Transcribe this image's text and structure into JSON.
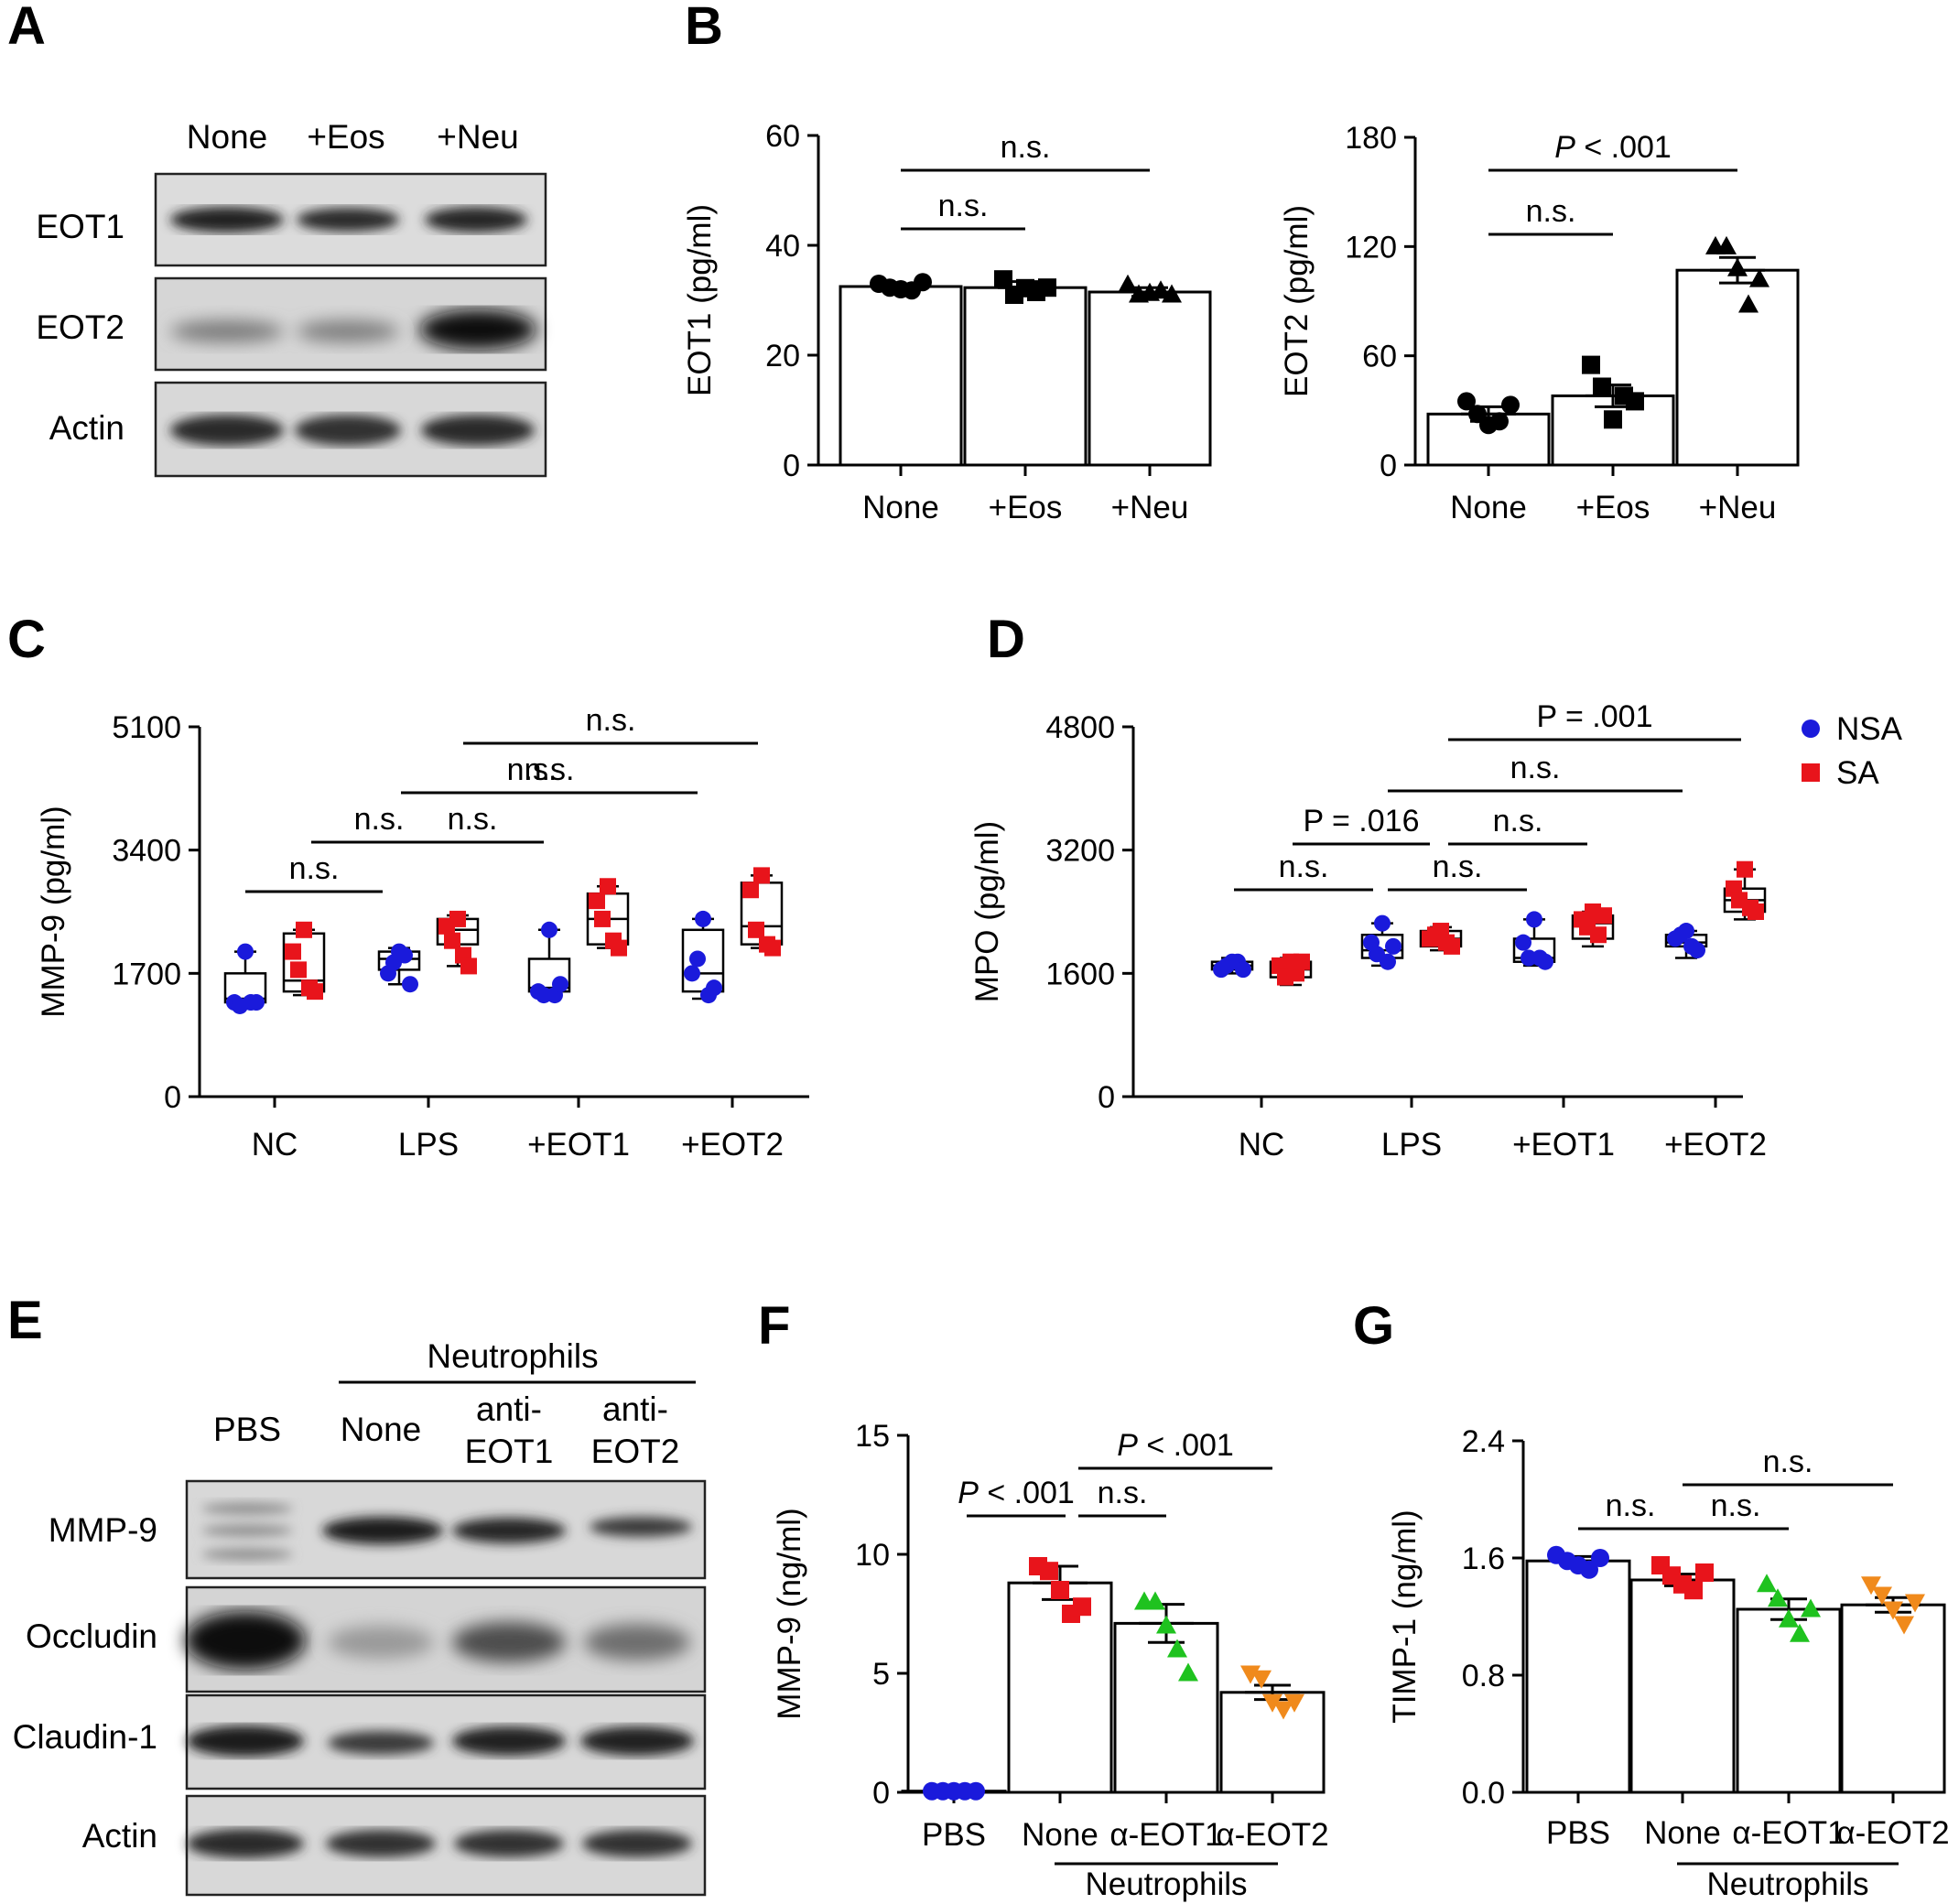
{
  "panels": {
    "A": {
      "label": "A",
      "lanes": [
        "None",
        "+Eos",
        "+Neu"
      ],
      "rows": [
        "EOT1",
        "EOT2",
        "Actin"
      ]
    },
    "E": {
      "label": "E",
      "group_label": "Neutrophils",
      "lanes": [
        "PBS",
        "None",
        "anti-",
        "EOT1",
        "anti-",
        "EOT2"
      ],
      "rows": [
        "MMP-9",
        "Occludin",
        "Claudin-1",
        "Actin"
      ]
    }
  },
  "legend": {
    "items": [
      {
        "name": "NSA",
        "color": "#1a1adb"
      },
      {
        "name": "SA",
        "color": "#e8141b"
      }
    ]
  },
  "chart_data": [
    {
      "id": "B-left",
      "panel": "B",
      "type": "bar",
      "categories": [
        "None",
        "+Eos",
        "+Neu"
      ],
      "values": [
        32.5,
        32.3,
        31.5
      ],
      "sem": [
        0.5,
        1.1,
        0.8
      ],
      "points": [
        [
          33.0,
          32.3,
          32.0,
          31.8,
          33.3
        ],
        [
          33.8,
          31.0,
          32.2,
          31.5,
          32.3
        ],
        [
          32.8,
          31.0,
          31.3,
          31.7,
          31.0
        ]
      ],
      "marker": "circle-square-triangle",
      "ylabel": "EOT1 (pg/ml)",
      "ylim": [
        0,
        60
      ],
      "yticks": [
        0,
        20,
        40,
        60
      ],
      "significance": [
        {
          "from": "None",
          "to": "+Eos",
          "text": "n.s."
        },
        {
          "from": "None",
          "to": "+Neu",
          "text": "n.s."
        }
      ]
    },
    {
      "id": "B-right",
      "panel": "B",
      "type": "bar",
      "categories": [
        "None",
        "+Eos",
        "+Neu"
      ],
      "values": [
        28,
        38,
        107
      ],
      "sem": [
        4,
        6,
        7
      ],
      "points": [
        [
          35,
          28,
          22,
          24,
          33
        ],
        [
          55,
          43,
          25,
          38,
          35
        ],
        [
          120,
          120,
          108,
          88,
          102
        ]
      ],
      "marker": "circle-square-triangle",
      "ylabel": "EOT2 (pg/ml)",
      "ylim": [
        0,
        180
      ],
      "yticks": [
        0,
        60,
        120,
        180
      ],
      "significance": [
        {
          "from": "None",
          "to": "+Eos",
          "text": "n.s."
        },
        {
          "from": "None",
          "to": "+Neu",
          "text": "P < .001"
        }
      ]
    },
    {
      "id": "C",
      "panel": "C",
      "type": "box",
      "categories": [
        "NC",
        "LPS",
        "+EOT1",
        "+EOT2"
      ],
      "series": [
        {
          "name": "NSA",
          "color": "#1a1adb",
          "marker": "circle",
          "boxes": [
            [
              1250,
              1300,
              1350,
              1700,
              2000
            ],
            [
              1550,
              1750,
              1900,
              2000,
              2050
            ],
            [
              1350,
              1450,
              1500,
              1900,
              2300
            ],
            [
              1350,
              1450,
              1700,
              2300,
              2450
            ]
          ],
          "points": [
            [
              2000,
              1300,
              1250,
              1300,
              1300
            ],
            [
              2000,
              1700,
              1850,
              1950,
              1550
            ],
            [
              2300,
              1450,
              1400,
              1400,
              1550
            ],
            [
              2450,
              1700,
              1900,
              1400,
              1500
            ]
          ]
        },
        {
          "name": "SA",
          "color": "#e8141b",
          "marker": "square",
          "boxes": [
            [
              1400,
              1450,
              1600,
              2250,
              2300
            ],
            [
              1800,
              2100,
              2300,
              2450,
              2500
            ],
            [
              2050,
              2100,
              2450,
              2800,
              2900
            ],
            [
              2050,
              2100,
              2350,
              2950,
              3050
            ]
          ],
          "points": [
            [
              2300,
              2000,
              1750,
              1500,
              1450
            ],
            [
              2450,
              2350,
              2150,
              1950,
              1800
            ],
            [
              2900,
              2700,
              2450,
              2150,
              2050
            ],
            [
              3050,
              2850,
              2300,
              2100,
              2050
            ]
          ]
        }
      ],
      "ylabel": "MMP-9 (pg/ml)",
      "ylim": [
        0,
        5100
      ],
      "yticks": [
        0,
        1700,
        3400,
        5100
      ],
      "significance": [
        {
          "text": "n.s."
        },
        {
          "text": "n.s."
        },
        {
          "text": "n.s."
        },
        {
          "text": "n.s."
        },
        {
          "text": "n.s."
        },
        {
          "text": "n.s."
        }
      ]
    },
    {
      "id": "D",
      "panel": "D",
      "type": "box",
      "categories": [
        "NC",
        "LPS",
        "+EOT1",
        "+EOT2"
      ],
      "series": [
        {
          "name": "NSA",
          "color": "#1a1adb",
          "marker": "circle",
          "boxes": [
            [
              1600,
              1650,
              1700,
              1750,
              1800
            ],
            [
              1700,
              1800,
              1900,
              2100,
              2250
            ],
            [
              1700,
              1750,
              1800,
              2050,
              2300
            ],
            [
              1800,
              1950,
              2000,
              2100,
              2150
            ]
          ],
          "points": [
            [
              1750,
              1650,
              1700,
              1750,
              1650
            ],
            [
              2250,
              2000,
              1850,
              1750,
              1950
            ],
            [
              2300,
              2000,
              1800,
              1800,
              1750
            ],
            [
              2150,
              2050,
              2100,
              1950,
              1900
            ]
          ]
        },
        {
          "name": "SA",
          "color": "#e8141b",
          "marker": "square",
          "boxes": [
            [
              1450,
              1550,
              1650,
              1750,
              1800
            ],
            [
              1900,
              1950,
              2050,
              2150,
              2200
            ],
            [
              1950,
              2050,
              2250,
              2350,
              2400
            ],
            [
              2300,
              2400,
              2550,
              2700,
              2950
            ]
          ],
          "points": [
            [
              1750,
              1700,
              1550,
              1600,
              1750
            ],
            [
              2150,
              2050,
              2100,
              2000,
              1950
            ],
            [
              2400,
              2300,
              2200,
              2100,
              2350
            ],
            [
              2950,
              2700,
              2550,
              2450,
              2400
            ]
          ]
        }
      ],
      "ylabel": "MPO (pg/ml)",
      "ylim": [
        0,
        4800
      ],
      "yticks": [
        0,
        1600,
        3200,
        4800
      ],
      "significance": [
        {
          "text": "n.s."
        },
        {
          "text": "n.s."
        },
        {
          "text": "P = .016"
        },
        {
          "text": "n.s."
        },
        {
          "text": "n.s."
        },
        {
          "text": "P = .001"
        }
      ]
    },
    {
      "id": "F",
      "panel": "F",
      "type": "bar",
      "categories": [
        "PBS",
        "None",
        "α-EOT1",
        "α-EOT2"
      ],
      "group_label": "Neutrophils",
      "values": [
        0.05,
        8.8,
        7.1,
        4.2
      ],
      "sem": [
        0.02,
        0.7,
        0.8,
        0.3
      ],
      "colors": [
        "#1a1adb",
        "#e8141b",
        "#1fc21f",
        "#f08a1c"
      ],
      "markers": [
        "circle",
        "square",
        "triangle",
        "triangle-down"
      ],
      "points": [
        [
          0.05,
          0.05,
          0.05,
          0.05,
          0.05
        ],
        [
          9.5,
          9.3,
          8.5,
          7.5,
          7.8
        ],
        [
          8.0,
          8.0,
          7.0,
          6.0,
          5.0
        ],
        [
          5.0,
          4.8,
          3.8,
          3.5,
          3.8
        ]
      ],
      "ylabel": "MMP-9 (ng/ml)",
      "ylim": [
        0,
        15
      ],
      "yticks": [
        0,
        5,
        10,
        15
      ],
      "significance": [
        {
          "from": "PBS",
          "to": "None",
          "text": "P < .001"
        },
        {
          "from": "None",
          "to": "α-EOT1",
          "text": "n.s."
        },
        {
          "from": "None",
          "to": "α-EOT2",
          "text": "P < .001"
        }
      ]
    },
    {
      "id": "G",
      "panel": "G",
      "type": "bar",
      "categories": [
        "PBS",
        "None",
        "α-EOT1",
        "α-EOT2"
      ],
      "group_label": "Neutrophils",
      "values": [
        1.58,
        1.45,
        1.25,
        1.28
      ],
      "sem": [
        0.03,
        0.04,
        0.07,
        0.05
      ],
      "colors": [
        "#1a1adb",
        "#e8141b",
        "#1fc21f",
        "#f08a1c"
      ],
      "markers": [
        "circle",
        "square",
        "triangle",
        "triangle-down"
      ],
      "points": [
        [
          1.62,
          1.58,
          1.55,
          1.52,
          1.6
        ],
        [
          1.55,
          1.48,
          1.42,
          1.38,
          1.5
        ],
        [
          1.42,
          1.32,
          1.18,
          1.08,
          1.25
        ],
        [
          1.42,
          1.35,
          1.25,
          1.15,
          1.3
        ]
      ],
      "ylabel": "TIMP-1 (ng/ml)",
      "ylim": [
        0,
        2.4
      ],
      "yticks": [
        0.0,
        0.8,
        1.6,
        2.4
      ],
      "significance": [
        {
          "from": "PBS",
          "to": "None",
          "text": "n.s."
        },
        {
          "from": "None",
          "to": "α-EOT1",
          "text": "n.s."
        },
        {
          "from": "None",
          "to": "α-EOT2",
          "text": "n.s."
        }
      ]
    }
  ]
}
